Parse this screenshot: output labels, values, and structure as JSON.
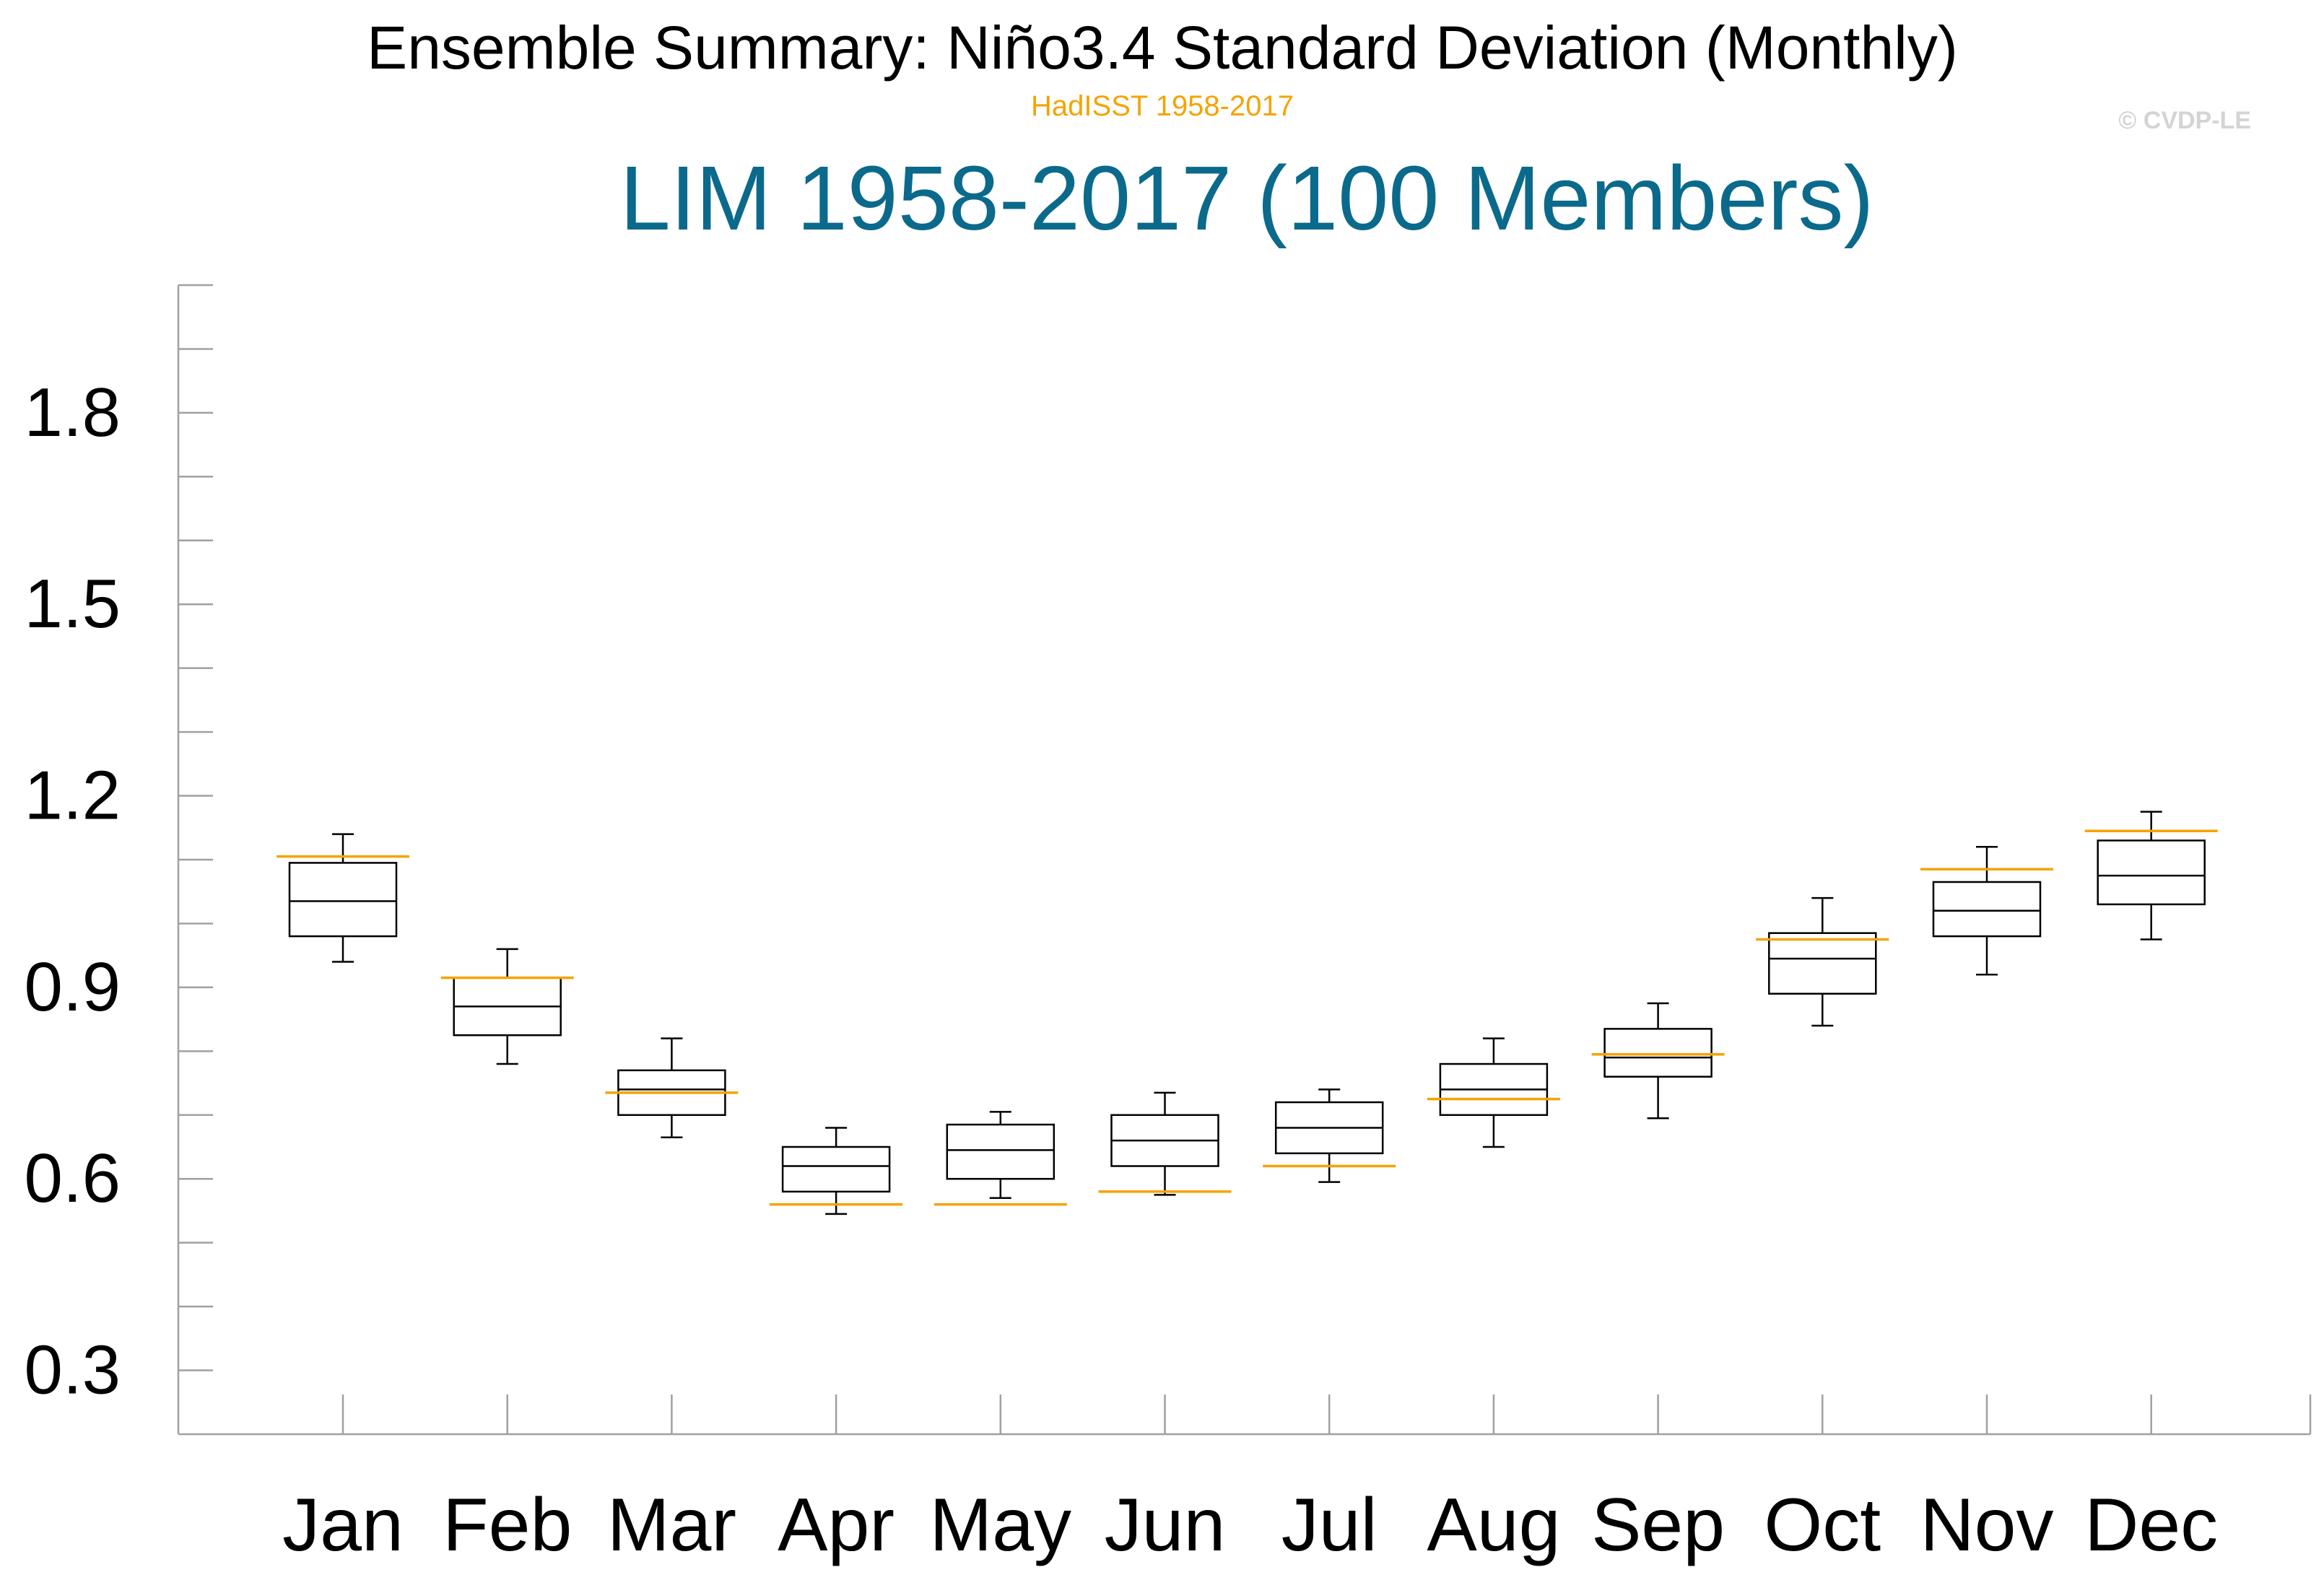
{
  "header": {
    "title": "Ensemble Summary: Niño3.4 Standard Deviation (Monthly)",
    "subtitle": "HadISST 1958-2017",
    "copyright": "© CVDP-LE",
    "panel_title": "LIM 1958-2017 (100 Members)"
  },
  "colors": {
    "panel_title": "#0b6a8b",
    "observation": "#f5a300",
    "box": "#000000",
    "axis": "#a0a0a0"
  },
  "chart_data": {
    "type": "boxplot",
    "title": "Ensemble Summary: Niño3.4 Standard Deviation (Monthly)",
    "subtitle": "HadISST 1958-2017",
    "panel_title": "LIM 1958-2017 (100 Members)",
    "xlabel": "",
    "ylabel": "",
    "ylim": [
      0.2,
      2.0
    ],
    "yticks": [
      0.3,
      0.6,
      0.9,
      1.2,
      1.5,
      1.8
    ],
    "ytick_labels": [
      "0.3",
      "0.6",
      "0.9",
      "1.2",
      "1.5",
      "1.8"
    ],
    "yminor_step": 0.1,
    "categories": [
      "Jan",
      "Feb",
      "Mar",
      "Apr",
      "May",
      "Jun",
      "Jul",
      "Aug",
      "Sep",
      "Oct",
      "Nov",
      "Dec"
    ],
    "series": [
      {
        "values": [
          {
            "min": 0.94,
            "q1": 0.98,
            "median": 1.035,
            "q3": 1.095,
            "max": 1.14
          },
          {
            "min": 0.78,
            "q1": 0.825,
            "median": 0.87,
            "q3": 0.915,
            "max": 0.96
          },
          {
            "min": 0.665,
            "q1": 0.7,
            "median": 0.74,
            "q3": 0.77,
            "max": 0.82
          },
          {
            "min": 0.545,
            "q1": 0.58,
            "median": 0.62,
            "q3": 0.65,
            "max": 0.68
          },
          {
            "min": 0.57,
            "q1": 0.6,
            "median": 0.645,
            "q3": 0.685,
            "max": 0.705
          },
          {
            "min": 0.575,
            "q1": 0.62,
            "median": 0.66,
            "q3": 0.7,
            "max": 0.735
          },
          {
            "min": 0.595,
            "q1": 0.64,
            "median": 0.68,
            "q3": 0.72,
            "max": 0.74
          },
          {
            "min": 0.65,
            "q1": 0.7,
            "median": 0.74,
            "q3": 0.78,
            "max": 0.82
          },
          {
            "min": 0.695,
            "q1": 0.76,
            "median": 0.79,
            "q3": 0.835,
            "max": 0.875
          },
          {
            "min": 0.84,
            "q1": 0.89,
            "median": 0.945,
            "q3": 0.985,
            "max": 1.04
          },
          {
            "min": 0.92,
            "q1": 0.98,
            "median": 1.02,
            "q3": 1.065,
            "max": 1.12
          },
          {
            "min": 0.975,
            "q1": 1.03,
            "median": 1.075,
            "q3": 1.13,
            "max": 1.175
          }
        ]
      },
      {
        "observation_values": [
          1.105,
          0.915,
          0.735,
          0.56,
          0.56,
          0.58,
          0.62,
          0.725,
          0.795,
          0.975,
          1.085,
          1.145
        ]
      }
    ]
  }
}
